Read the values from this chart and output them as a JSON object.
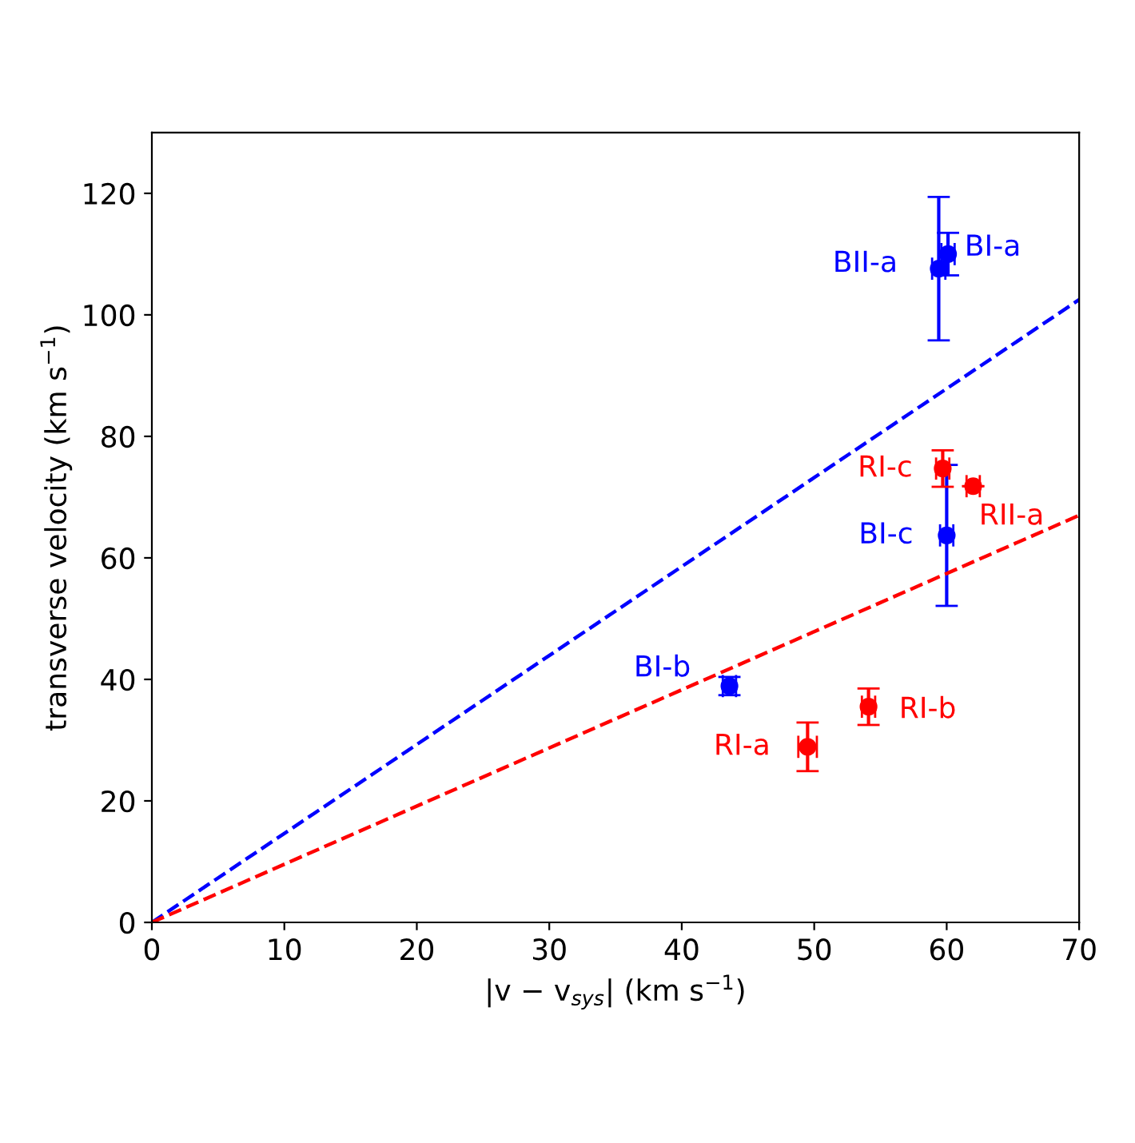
{
  "chart_data": {
    "type": "scatter",
    "xlabel": "|v − v$_{sys}$| (km s$^{−1}$)",
    "ylabel": "transverse velocity (km s$^{−1}$)",
    "xlim": [
      0,
      70
    ],
    "ylim": [
      0,
      130
    ],
    "xticks": [
      0,
      10,
      20,
      30,
      40,
      50,
      60,
      70
    ],
    "yticks": [
      0,
      20,
      40,
      60,
      80,
      100,
      120
    ],
    "grid": false,
    "series": [
      {
        "marker": "circle",
        "color": "#0000ff",
        "x": [
          59.4,
          60.1,
          60.0,
          43.6
        ],
        "values": [
          107.6,
          110,
          63.7,
          38.9
        ],
        "errors": [
          11.8,
          3.5,
          11.6,
          1.5
        ],
        "xerrors": [
          0.5,
          0.5,
          0.5,
          0.5
        ]
      },
      {
        "marker": "circle",
        "color": "#ff0000",
        "x": [
          59.7,
          62.0,
          49.5,
          54.1
        ],
        "values": [
          74.7,
          71.8,
          28.9,
          35.5
        ],
        "errors": [
          3,
          null,
          4,
          3
        ],
        "xerrors": [
          0.5,
          0.5,
          0.7,
          0.5
        ]
      },
      {
        "type": "line",
        "line_style": "dashed",
        "color": "#0000ff",
        "x": [
          0,
          70
        ],
        "values": [
          0,
          102.5
        ]
      },
      {
        "type": "line",
        "line_style": "dashed",
        "color": "#ff0000",
        "x": [
          0,
          70
        ],
        "values": [
          0,
          67
        ]
      }
    ],
    "annotations": [
      {
        "text": "BII-a",
        "x": 59.4,
        "y": 107.6
      },
      {
        "text": "BI-a",
        "x": 60.1,
        "y": 110
      },
      {
        "text": "BI-c",
        "x": 60.0,
        "y": 63.7
      },
      {
        "text": "BI-b",
        "x": 43.6,
        "y": 38.9
      },
      {
        "text": "RI-c",
        "x": 59.7,
        "y": 74.7
      },
      {
        "text": "RII-a",
        "x": 62.0,
        "y": 71.8
      },
      {
        "text": "RI-a",
        "x": 49.5,
        "y": 28.9
      },
      {
        "text": "RI-b",
        "x": 54.1,
        "y": 35.5
      }
    ]
  }
}
